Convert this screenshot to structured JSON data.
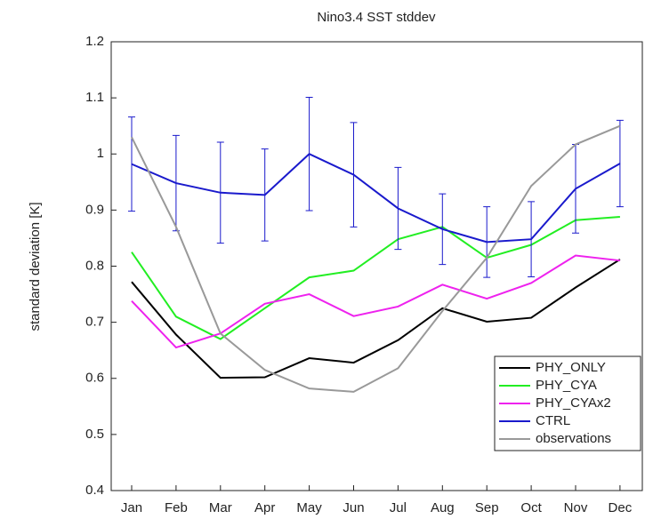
{
  "chart_data": {
    "type": "line",
    "title": "Nino3.4 SST stddev",
    "y_label": "standard deviation [K]",
    "categories": [
      "Jan",
      "Feb",
      "Mar",
      "Apr",
      "May",
      "Jun",
      "Jul",
      "Aug",
      "Sep",
      "Oct",
      "Nov",
      "Dec"
    ],
    "ylim": [
      0.4,
      1.2
    ],
    "yticks": [
      0.4,
      0.5,
      0.6,
      0.7,
      0.8,
      0.9,
      1,
      1.1,
      1.2
    ],
    "legend": "lower right",
    "series": [
      {
        "name": "PHY_ONLY",
        "color": "#000000",
        "values": [
          0.772,
          0.678,
          0.601,
          0.602,
          0.636,
          0.628,
          0.668,
          0.725,
          0.701,
          0.708,
          0.762,
          0.812
        ]
      },
      {
        "name": "PHY_CYA",
        "color": "#22ee22",
        "values": [
          0.825,
          0.71,
          0.67,
          0.725,
          0.78,
          0.792,
          0.848,
          0.87,
          0.815,
          0.838,
          0.882,
          0.888
        ]
      },
      {
        "name": "PHY_CYAx2",
        "color": "#ee22ee",
        "values": [
          0.738,
          0.655,
          0.68,
          0.733,
          0.75,
          0.711,
          0.728,
          0.767,
          0.742,
          0.77,
          0.819,
          0.81
        ]
      },
      {
        "name": "CTRL",
        "color": "#1a1acc",
        "values": [
          0.982,
          0.948,
          0.931,
          0.927,
          1.0,
          0.963,
          0.903,
          0.866,
          0.843,
          0.848,
          0.938,
          0.983
        ],
        "errors": [
          0.084,
          0.085,
          0.09,
          0.082,
          0.101,
          0.093,
          0.073,
          0.063,
          0.063,
          0.067,
          0.079,
          0.077
        ]
      },
      {
        "name": "observations",
        "color": "#999999",
        "values": [
          1.03,
          0.87,
          0.68,
          0.615,
          0.582,
          0.576,
          0.618,
          0.72,
          0.815,
          0.943,
          1.017,
          1.05
        ]
      }
    ]
  }
}
